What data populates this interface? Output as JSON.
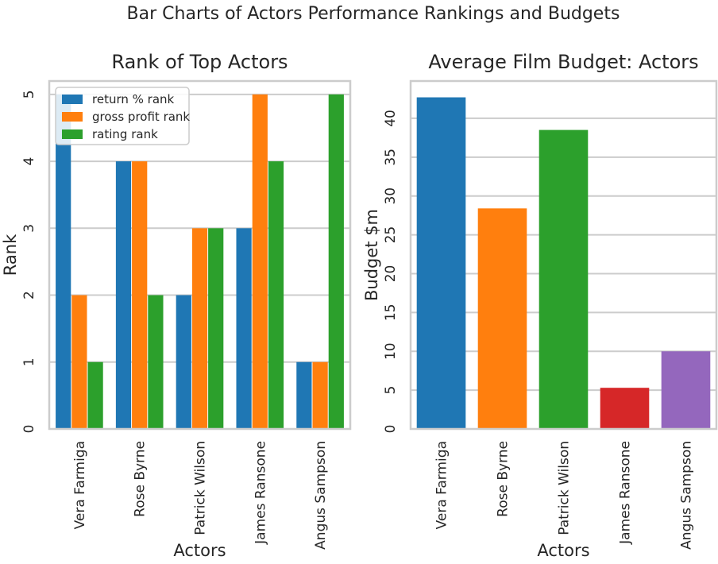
{
  "suptitle": "Bar Charts of Actors Performance Rankings and Budgets",
  "chart_data": [
    {
      "type": "bar",
      "title": "Rank of Top Actors",
      "xlabel": "Actors",
      "ylabel": "Rank",
      "categories": [
        "Vera Farmiga",
        "Rose Byrne",
        "Patrick Wilson",
        "James Ransone",
        "Angus Sampson"
      ],
      "series": [
        {
          "name": "return % rank",
          "color": "#1f77b4",
          "values": [
            5,
            4,
            2,
            3,
            1
          ]
        },
        {
          "name": "gross profit rank",
          "color": "#ff7f0e",
          "values": [
            2,
            4,
            3,
            5,
            1
          ]
        },
        {
          "name": "rating rank",
          "color": "#2ca02c",
          "values": [
            1,
            2,
            3,
            4,
            5
          ]
        }
      ],
      "ylim": [
        0,
        5.2
      ],
      "yticks": [
        0,
        1,
        2,
        3,
        4,
        5
      ],
      "grid": true,
      "legend": "top-left"
    },
    {
      "type": "bar",
      "title": "Average Film Budget: Actors",
      "xlabel": "Actors",
      "ylabel": "Budget $m",
      "categories": [
        "Vera Farmiga",
        "Rose Byrne",
        "Patrick Wilson",
        "James Ransone",
        "Angus Sampson"
      ],
      "values": [
        42.7,
        28.4,
        38.5,
        5.3,
        10.0
      ],
      "colors": [
        "#1f77b4",
        "#ff7f0e",
        "#2ca02c",
        "#d62728",
        "#9467bd"
      ],
      "ylim": [
        0,
        44.8
      ],
      "yticks": [
        0,
        5,
        10,
        15,
        20,
        25,
        30,
        35,
        40
      ],
      "grid": true
    }
  ]
}
